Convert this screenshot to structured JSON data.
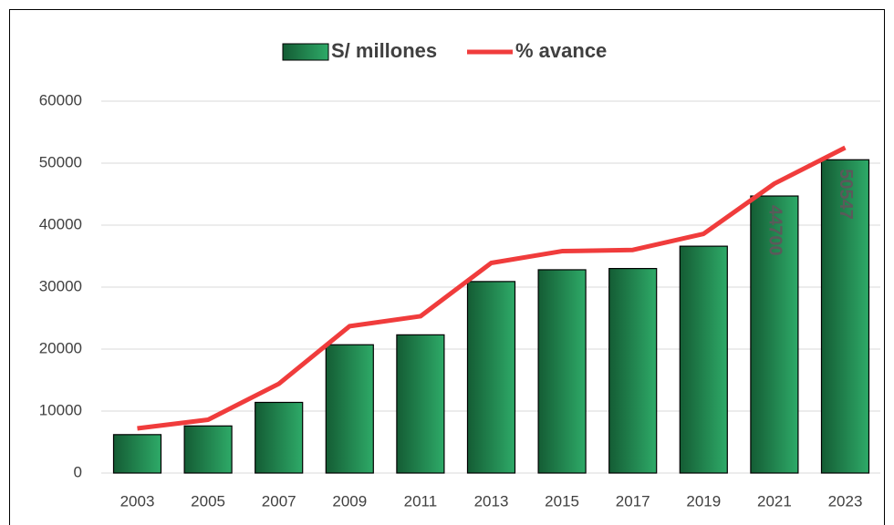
{
  "chart_data": {
    "type": "bar",
    "categories": [
      "2003",
      "2005",
      "2007",
      "2009",
      "2011",
      "2013",
      "2015",
      "2017",
      "2019",
      "2021",
      "2023"
    ],
    "series": [
      {
        "name": "S/ millones",
        "type": "bar",
        "color": "#1f7a48",
        "values": [
          6200,
          7600,
          11400,
          20700,
          22300,
          30900,
          32800,
          33000,
          36600,
          44700,
          50547
        ],
        "value_labels": [
          null,
          null,
          null,
          null,
          null,
          null,
          null,
          null,
          null,
          "44700",
          "50547"
        ]
      },
      {
        "name": "% avance",
        "type": "line",
        "color": "#f03c3c",
        "values": [
          7200,
          8600,
          14400,
          23700,
          25300,
          33900,
          35800,
          36000,
          38600,
          46700,
          52500
        ]
      }
    ],
    "ylim": [
      0,
      60000
    ],
    "yticks": [
      0,
      10000,
      20000,
      30000,
      40000,
      50000,
      60000
    ],
    "grid": true,
    "legend": "top"
  }
}
